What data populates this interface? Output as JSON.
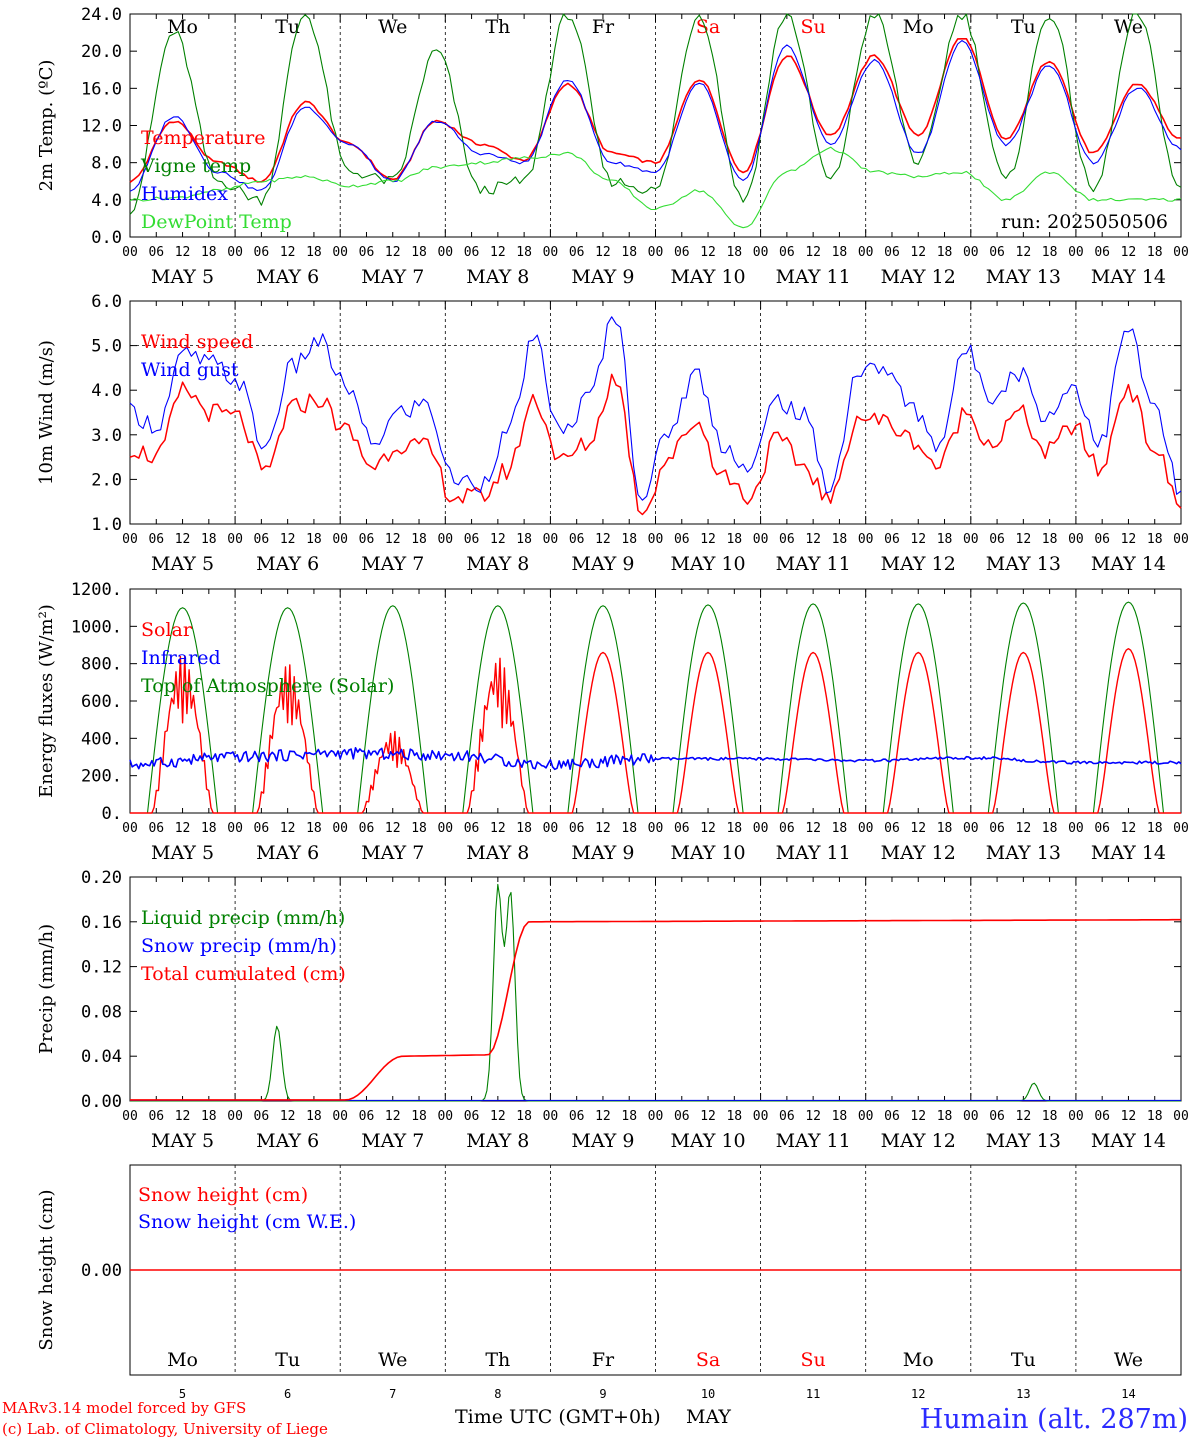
{
  "days": {
    "weekday": [
      "Mo",
      "Tu",
      "We",
      "Th",
      "Fr",
      "Sa",
      "Su",
      "Mo",
      "Tu",
      "We"
    ],
    "weekend_flags": [
      false,
      false,
      false,
      false,
      false,
      true,
      true,
      false,
      false,
      false
    ],
    "date": [
      "MAY  5",
      "MAY  6",
      "MAY  7",
      "MAY  8",
      "MAY  9",
      "MAY 10",
      "MAY 11",
      "MAY 12",
      "MAY 13",
      "MAY 14"
    ],
    "day_num": [
      "5",
      "6",
      "7",
      "8",
      "9",
      "10",
      "11",
      "12",
      "13",
      "14"
    ]
  },
  "hour_ticks": [
    "00",
    "06",
    "12",
    "18"
  ],
  "hour_end": "00",
  "colors": {
    "red": "#ff0000",
    "blue": "#0000ff",
    "green": "#008000",
    "lightgreen": "#33dd33",
    "weekday_text": "#000000",
    "weekend_text": "#ff0000",
    "station": "#2b2bff"
  },
  "footer": {
    "credit1": "MARv3.14 model forced by GFS",
    "credit2": "(c) Lab. of Climatology, University of Liege",
    "xlabel": "Time UTC (GMT+0h)",
    "month": "MAY",
    "station": "Humain (alt. 287m)"
  },
  "chart_data": [
    {
      "type": "line",
      "ylabel": "2m Temp. (ºC)",
      "ylim": [
        0,
        24
      ],
      "yticks": [
        "0.0",
        "4.0",
        "8.0",
        "12.0",
        "16.0",
        "20.0",
        "24.0"
      ],
      "annotation": "run: 2025050506",
      "legend": [
        "Temperature",
        "Vigne temp",
        "Humidex",
        "DewPoint Temp"
      ],
      "series": [
        {
          "name": "Temperature",
          "color": "red",
          "values": [
            6,
            12.5,
            8,
            6,
            14.5,
            10,
            6.2,
            12.5,
            10,
            8.3,
            16.5,
            9,
            8,
            17,
            7,
            19.5,
            11,
            19.5,
            11,
            21.5,
            10.5,
            19,
            9,
            16.5,
            10.5
          ]
        },
        {
          "name": "Vigne temp",
          "color": "green",
          "values": [
            3,
            22,
            6,
            4,
            24,
            7,
            6,
            20,
            5,
            6,
            24,
            6,
            5,
            24,
            4,
            24,
            6,
            24,
            8,
            24,
            6,
            24,
            5,
            24,
            5
          ]
        },
        {
          "name": "Humidex",
          "color": "blue",
          "values": [
            5,
            13,
            7,
            5,
            14,
            10,
            6,
            12.5,
            9,
            8,
            17,
            8,
            7,
            16.5,
            6,
            20.5,
            10,
            19,
            9,
            21,
            10,
            18.5,
            8,
            16,
            9.5
          ]
        },
        {
          "name": "DewPoint Temp",
          "color": "lightgreen",
          "values": [
            4,
            4.2,
            5,
            6,
            6.5,
            5.5,
            6,
            7.5,
            8,
            8.5,
            9,
            6,
            3,
            5,
            1,
            7,
            9.5,
            7,
            6.5,
            7,
            4,
            7,
            4,
            4,
            4
          ]
        }
      ]
    },
    {
      "type": "line",
      "ylabel": "10m Wind (m/s)",
      "ylim": [
        1,
        6
      ],
      "yticks": [
        "1.0",
        "2.0",
        "3.0",
        "4.0",
        "5.0",
        "6.0"
      ],
      "legend": [
        "Wind speed",
        "Wind gust"
      ],
      "series": [
        {
          "name": "Wind speed",
          "color": "red",
          "values": [
            2.7,
            2.5,
            4,
            3.5,
            3.4,
            2.1,
            3.6,
            3.8,
            3.1,
            2.3,
            2.8,
            2.7,
            1.6,
            1.6,
            2.2,
            3.8,
            2.4,
            2.8,
            4.3,
            1.3,
            2.5,
            3.3,
            2.1,
            1.6,
            2.9,
            2.3,
            1.5,
            3.4,
            3.3,
            2.9,
            2.3,
            3.5,
            2.8,
            3.5,
            2.6,
            3.2,
            2.2,
            4.1,
            2.7,
            1.4
          ]
        },
        {
          "name": "Wind gust",
          "color": "blue",
          "values": [
            3.5,
            3.2,
            4.8,
            4.6,
            4.2,
            2.7,
            4.5,
            5.1,
            4.1,
            2.8,
            3.5,
            3.7,
            2.0,
            1.9,
            3.0,
            5.1,
            3.0,
            3.8,
            5.7,
            1.6,
            3.1,
            4.4,
            2.8,
            2.2,
            3.8,
            3.4,
            1.8,
            4.4,
            4.5,
            3.6,
            2.8,
            4.9,
            3.9,
            4.4,
            3.4,
            4.1,
            2.8,
            5.4,
            3.6,
            1.7
          ]
        }
      ]
    },
    {
      "type": "line",
      "ylabel": "Energy fluxes (W/m²)",
      "ylim": [
        0,
        1200
      ],
      "yticks": [
        "0.",
        "200.",
        "400.",
        "600.",
        "800.",
        "1000.",
        "1200."
      ],
      "legend": [
        "Solar",
        "Infrared",
        "Top of Atmosphere (Solar)"
      ],
      "peak_solar": [
        850,
        800,
        440,
        840,
        860,
        860,
        860,
        860,
        860,
        880
      ],
      "peak_toa": [
        1100,
        1100,
        1110,
        1110,
        1110,
        1115,
        1120,
        1120,
        1125,
        1130
      ],
      "infrared": [
        260,
        300,
        320,
        310,
        260,
        290,
        290,
        280,
        295,
        270
      ]
    },
    {
      "type": "line",
      "ylabel": "Precip (mm/h)",
      "ylim": [
        0,
        0.2
      ],
      "yticks": [
        "0.00",
        "0.04",
        "0.08",
        "0.12",
        "0.16",
        "0.20"
      ],
      "legend": [
        "Liquid precip (mm/h)",
        "Snow precip (mm/h)",
        "Total cumulated (cm)"
      ],
      "cumulated": [
        0,
        0,
        0.001,
        0.04,
        0.041,
        0.16,
        0.16,
        0.161,
        0.161,
        0.162,
        0.162
      ],
      "liquid_peaks": [
        {
          "t": 1.4,
          "v": 0.067
        },
        {
          "t": 3.5,
          "v": 0.19
        },
        {
          "t": 3.62,
          "v": 0.185
        },
        {
          "t": 8.6,
          "v": 0.016
        }
      ]
    },
    {
      "type": "line",
      "ylabel": "Snow height (cm)",
      "yticks": [
        "0.00"
      ],
      "legend": [
        "Snow height (cm)",
        "Snow height (cm W.E.)"
      ],
      "values": [
        0
      ]
    }
  ]
}
